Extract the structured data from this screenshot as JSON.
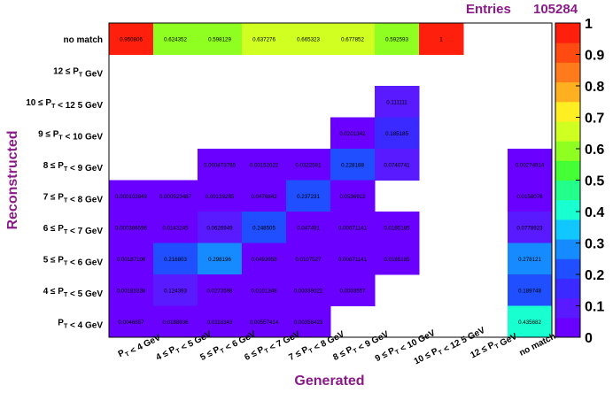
{
  "stats": {
    "entries_label": "Entries",
    "entries_value": "105284"
  },
  "chart_data": {
    "type": "heatmap",
    "xlabel": "Generated",
    "ylabel": "Reconstructed",
    "x_categories": [
      "P_T < 4 GeV",
      "4 ≤ P_T < 5 GeV",
      "5 ≤ P_T < 6 GeV",
      "6 ≤ P_T < 7 GeV",
      "7 ≤ P_T < 8 GeV",
      "8 ≤ P_T < 9 GeV",
      "9 ≤ P_T < 10 GeV",
      "10 ≤ P_T < 12 5 GeV",
      "12 ≤ P_T GeV",
      "no match"
    ],
    "y_categories": [
      "P_T < 4 GeV",
      "4 ≤ P_T < 5 GeV",
      "5 ≤ P_T < 6 GeV",
      "6 ≤ P_T < 7 GeV",
      "7 ≤ P_T < 8 GeV",
      "8 ≤ P_T < 9 GeV",
      "9 ≤ P_T < 10 GeV",
      "10 ≤ P_T < 12 5 GeV",
      "12 ≤ P_T GeV",
      "no match"
    ],
    "cells": [
      [
        "0.950806",
        "0.624352",
        "0.598129",
        "0.637276",
        "0.665323",
        "0.677852",
        "0.592593",
        "1",
        null,
        null
      ],
      [
        null,
        null,
        null,
        null,
        null,
        null,
        null,
        null,
        null,
        null
      ],
      [
        null,
        null,
        null,
        null,
        null,
        null,
        "0.111111",
        null,
        null,
        null
      ],
      [
        null,
        null,
        null,
        null,
        null,
        "0.0201342",
        "0.185185",
        null,
        null,
        null
      ],
      [
        null,
        null,
        "0.000473785",
        "0.00152622",
        "0.0322581",
        "0.228188",
        "0.0740741",
        null,
        null,
        "0.00274914"
      ],
      [
        "0.000103949",
        "0.000523487",
        "0.00139285",
        "0.0476842",
        "0.237231",
        "0.0536913",
        null,
        null,
        null,
        "0.0158076"
      ],
      [
        "0.000386596",
        "0.0143245",
        "0.0626949",
        "0.248505",
        "0.047491",
        "0.00671141",
        "0.0185185",
        null,
        null,
        "0.0778923"
      ],
      [
        "0.00187106",
        "0.216803",
        "0.298196",
        "0.0493958",
        "0.0107527",
        "0.00671141",
        "0.0185185",
        null,
        null,
        "0.278121"
      ],
      [
        "0.00185338",
        "0.124393",
        "0.0273598",
        "0.0101348",
        "0.00339022",
        "0.0033557",
        null,
        null,
        null,
        "0.189748"
      ],
      [
        "0.0046857",
        "0.0188936",
        "0.0118343",
        "0.00557414",
        "0.00358423",
        null,
        null,
        null,
        null,
        "0.435682"
      ]
    ],
    "zlim": [
      0,
      1
    ],
    "colorbar_ticks": [
      "0",
      "0.1",
      "0.2",
      "0.3",
      "0.4",
      "0.5",
      "0.6",
      "0.7",
      "0.8",
      "0.9",
      "1"
    ],
    "palette": [
      "#6a00ff",
      "#5a1aff",
      "#3a2aff",
      "#1f4fff",
      "#158bff",
      "#10c8ff",
      "#18ffd0",
      "#22ff8a",
      "#44ff33",
      "#8fff22",
      "#d0ff22",
      "#ffee22",
      "#ffb020",
      "#ff7a1a",
      "#ff4a12",
      "#ff1f0d"
    ],
    "grid": false,
    "legend": "colorbar-right"
  }
}
